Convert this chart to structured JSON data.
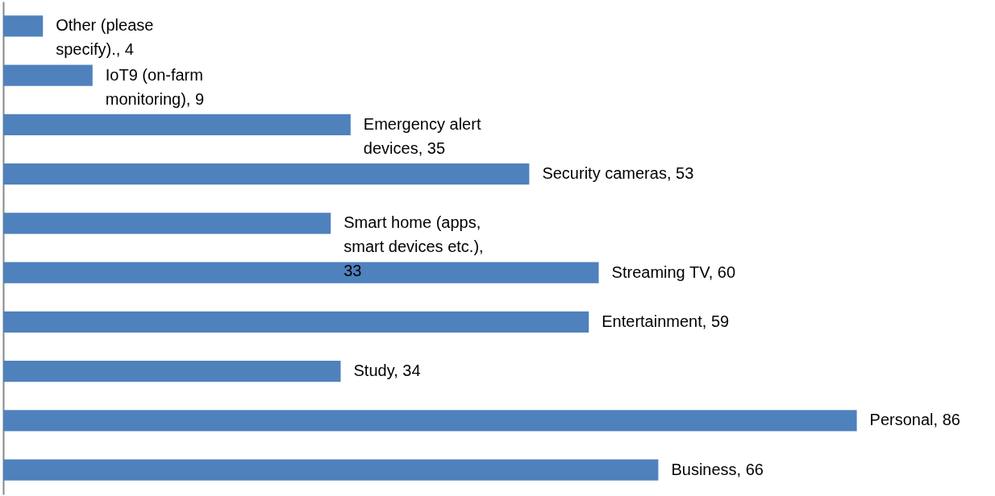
{
  "chart_data": {
    "type": "bar",
    "orientation": "horizontal",
    "grid": false,
    "categories": [
      null,
      null,
      null,
      null,
      null,
      null,
      null,
      null,
      null,
      null
    ],
    "values": [
      4,
      9,
      35,
      53,
      33,
      60,
      59,
      34,
      86,
      66
    ],
    "value_labels": [
      "Other (please specify)., 4",
      "IoT9 (on-farm monitoring), 9",
      "Emergency alert devices, 35",
      "Security cameras, 53",
      "Smart home (apps, smart devices etc.), 33",
      "Streaming TV, 60",
      "Entertainment, 59",
      "Study, 34",
      "Personal, 86",
      "Business, 66"
    ],
    "color": "#4f81bd"
  }
}
